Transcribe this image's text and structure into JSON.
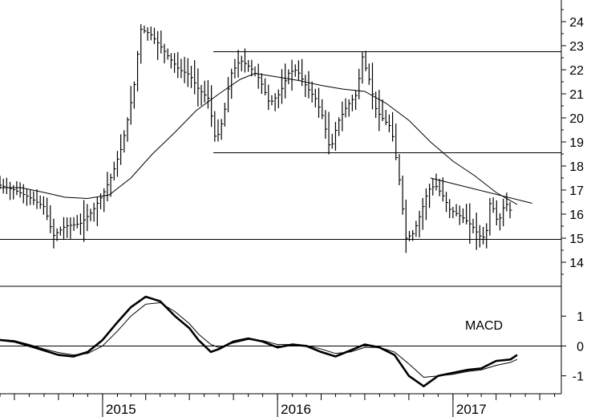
{
  "chart_data": [
    {
      "type": "ohlc",
      "panel": "price",
      "title": "",
      "ylim": [
        13.0,
        24.9
      ],
      "yticks": [
        "24",
        "23",
        "22",
        "21",
        "20",
        "19",
        "18",
        "17",
        "16",
        "15",
        "14"
      ],
      "grid": false,
      "moving_average_points": [
        [
          "2014-06-01",
          17.1
        ],
        [
          "2014-07-15",
          17.1
        ],
        [
          "2014-09-01",
          16.9
        ],
        [
          "2014-10-15",
          16.7
        ],
        [
          "2014-12-01",
          16.65
        ],
        [
          "2015-01-15",
          16.8
        ],
        [
          "2015-03-01",
          17.5
        ],
        [
          "2015-04-15",
          18.5
        ],
        [
          "2015-06-01",
          19.4
        ],
        [
          "2015-07-15",
          20.3
        ],
        [
          "2015-09-01",
          21.0
        ],
        [
          "2015-10-15",
          21.6
        ],
        [
          "2015-11-15",
          21.85
        ],
        [
          "2016-01-01",
          21.7
        ],
        [
          "2016-02-15",
          21.55
        ],
        [
          "2016-04-01",
          21.35
        ],
        [
          "2016-05-15",
          21.2
        ],
        [
          "2016-07-01",
          21.1
        ],
        [
          "2016-08-15",
          20.6
        ],
        [
          "2016-10-01",
          19.9
        ],
        [
          "2016-11-15",
          19.0
        ],
        [
          "2017-01-01",
          18.2
        ],
        [
          "2017-02-15",
          17.6
        ],
        [
          "2017-04-01",
          16.9
        ],
        [
          "2017-05-15",
          16.4
        ]
      ],
      "trendlines": [
        {
          "from": [
            "2015-08-20",
            22.75
          ],
          "to": [
            "2017-08-15",
            22.75
          ]
        },
        {
          "from": [
            "2015-08-20",
            18.55
          ],
          "to": [
            "2017-08-15",
            18.55
          ]
        },
        {
          "from": [
            "2014-06-01",
            14.95
          ],
          "to": [
            "2017-08-15",
            14.95
          ]
        },
        {
          "from": [
            "2016-11-15",
            17.5
          ],
          "to": [
            "2017-06-15",
            16.45
          ]
        }
      ],
      "price_points": [
        [
          "2014-06-01",
          17.2
        ],
        [
          "2014-07-01",
          17.0
        ],
        [
          "2014-08-01",
          16.7
        ],
        [
          "2014-09-01",
          16.3
        ],
        [
          "2014-09-20",
          15.1
        ],
        [
          "2014-10-15",
          15.5
        ],
        [
          "2014-11-15",
          15.6
        ],
        [
          "2014-12-10",
          16.1
        ],
        [
          "2015-01-01",
          16.8
        ],
        [
          "2015-01-20",
          17.6
        ],
        [
          "2015-02-10",
          18.8
        ],
        [
          "2015-02-25",
          20.2
        ],
        [
          "2015-03-10",
          21.6
        ],
        [
          "2015-03-20",
          23.7
        ],
        [
          "2015-04-10",
          23.5
        ],
        [
          "2015-05-01",
          23.0
        ],
        [
          "2015-05-20",
          22.5
        ],
        [
          "2015-06-10",
          22.0
        ],
        [
          "2015-07-01",
          21.8
        ],
        [
          "2015-07-20",
          21.2
        ],
        [
          "2015-08-10",
          20.8
        ],
        [
          "2015-08-25",
          19.0
        ],
        [
          "2015-09-10",
          20.0
        ],
        [
          "2015-09-25",
          21.8
        ],
        [
          "2015-10-15",
          22.4
        ],
        [
          "2015-11-05",
          22.1
        ],
        [
          "2015-11-25",
          21.6
        ],
        [
          "2015-12-15",
          20.6
        ],
        [
          "2016-01-05",
          21.0
        ],
        [
          "2016-01-25",
          21.9
        ],
        [
          "2016-02-10",
          22.0
        ],
        [
          "2016-03-01",
          21.3
        ],
        [
          "2016-03-20",
          20.8
        ],
        [
          "2016-04-05",
          20.0
        ],
        [
          "2016-04-20",
          18.6
        ],
        [
          "2016-05-05",
          19.8
        ],
        [
          "2016-05-25",
          20.5
        ],
        [
          "2016-06-15",
          21.0
        ],
        [
          "2016-06-25",
          22.6
        ],
        [
          "2016-07-10",
          21.6
        ],
        [
          "2016-07-25",
          20.3
        ],
        [
          "2016-08-10",
          19.9
        ],
        [
          "2016-08-25",
          19.6
        ],
        [
          "2016-09-10",
          17.6
        ],
        [
          "2016-09-25",
          15.0
        ],
        [
          "2016-10-10",
          15.2
        ],
        [
          "2016-10-25",
          16.0
        ],
        [
          "2016-11-10",
          17.0
        ],
        [
          "2016-11-25",
          17.2
        ],
        [
          "2016-12-10",
          16.8
        ],
        [
          "2016-12-25",
          16.2
        ],
        [
          "2017-01-10",
          16.0
        ],
        [
          "2017-01-25",
          15.8
        ],
        [
          "2017-02-10",
          15.5
        ],
        [
          "2017-02-25",
          15.1
        ],
        [
          "2017-03-10",
          15.0
        ],
        [
          "2017-03-20",
          16.6
        ],
        [
          "2017-04-05",
          15.6
        ],
        [
          "2017-04-20",
          16.5
        ],
        [
          "2017-05-05",
          16.0
        ]
      ]
    },
    {
      "type": "line",
      "panel": "indicator",
      "title": "MACD",
      "ylim": [
        -1.6,
        2.0
      ],
      "yticks": [
        "1",
        "0",
        "-1"
      ],
      "grid": false,
      "series": [
        {
          "name": "",
          "style": "thick",
          "points": [
            [
              "2014-06-01",
              0.2
            ],
            [
              "2014-07-01",
              0.15
            ],
            [
              "2014-08-01",
              0.0
            ],
            [
              "2014-09-01",
              -0.15
            ],
            [
              "2014-10-01",
              -0.3
            ],
            [
              "2014-11-01",
              -0.35
            ],
            [
              "2014-12-01",
              -0.2
            ],
            [
              "2015-01-01",
              0.2
            ],
            [
              "2015-02-01",
              0.8
            ],
            [
              "2015-03-01",
              1.3
            ],
            [
              "2015-04-01",
              1.65
            ],
            [
              "2015-05-01",
              1.5
            ],
            [
              "2015-06-01",
              1.0
            ],
            [
              "2015-07-01",
              0.6
            ],
            [
              "2015-07-20",
              0.2
            ],
            [
              "2015-08-15",
              -0.2
            ],
            [
              "2015-09-01",
              -0.1
            ],
            [
              "2015-10-01",
              0.15
            ],
            [
              "2015-11-01",
              0.25
            ],
            [
              "2015-12-01",
              0.15
            ],
            [
              "2016-01-01",
              -0.05
            ],
            [
              "2016-02-01",
              0.05
            ],
            [
              "2016-03-01",
              0.0
            ],
            [
              "2016-04-01",
              -0.2
            ],
            [
              "2016-05-01",
              -0.35
            ],
            [
              "2016-06-01",
              -0.15
            ],
            [
              "2016-07-01",
              0.05
            ],
            [
              "2016-08-01",
              -0.05
            ],
            [
              "2016-09-01",
              -0.3
            ],
            [
              "2016-10-01",
              -1.0
            ],
            [
              "2016-11-01",
              -1.35
            ],
            [
              "2016-12-01",
              -1.0
            ],
            [
              "2017-01-01",
              -0.9
            ],
            [
              "2017-02-01",
              -0.8
            ],
            [
              "2017-03-01",
              -0.75
            ],
            [
              "2017-04-01",
              -0.5
            ],
            [
              "2017-05-01",
              -0.45
            ],
            [
              "2017-05-15",
              -0.3
            ]
          ]
        },
        {
          "name": "",
          "style": "thin",
          "points": [
            [
              "2014-06-01",
              0.22
            ],
            [
              "2014-07-01",
              0.18
            ],
            [
              "2014-08-01",
              0.05
            ],
            [
              "2014-09-01",
              -0.1
            ],
            [
              "2014-10-01",
              -0.22
            ],
            [
              "2014-11-01",
              -0.3
            ],
            [
              "2014-12-01",
              -0.25
            ],
            [
              "2015-01-01",
              0.0
            ],
            [
              "2015-02-01",
              0.5
            ],
            [
              "2015-03-01",
              1.0
            ],
            [
              "2015-04-01",
              1.4
            ],
            [
              "2015-05-01",
              1.45
            ],
            [
              "2015-06-01",
              1.15
            ],
            [
              "2015-07-01",
              0.75
            ],
            [
              "2015-07-20",
              0.4
            ],
            [
              "2015-08-15",
              0.05
            ],
            [
              "2015-09-01",
              -0.05
            ],
            [
              "2015-10-01",
              0.1
            ],
            [
              "2015-11-01",
              0.22
            ],
            [
              "2015-12-01",
              0.18
            ],
            [
              "2016-01-01",
              0.05
            ],
            [
              "2016-02-01",
              0.05
            ],
            [
              "2016-03-01",
              0.02
            ],
            [
              "2016-04-01",
              -0.1
            ],
            [
              "2016-05-01",
              -0.25
            ],
            [
              "2016-06-01",
              -0.2
            ],
            [
              "2016-07-01",
              -0.05
            ],
            [
              "2016-08-01",
              -0.05
            ],
            [
              "2016-09-01",
              -0.2
            ],
            [
              "2016-10-01",
              -0.6
            ],
            [
              "2016-11-01",
              -1.05
            ],
            [
              "2016-12-01",
              -1.0
            ],
            [
              "2017-01-01",
              -0.95
            ],
            [
              "2017-02-01",
              -0.85
            ],
            [
              "2017-03-01",
              -0.8
            ],
            [
              "2017-04-01",
              -0.65
            ],
            [
              "2017-05-01",
              -0.55
            ],
            [
              "2017-05-15",
              -0.45
            ]
          ]
        }
      ]
    }
  ],
  "x_axis": {
    "range": [
      "2014-06-01",
      "2017-08-15"
    ],
    "year_labels": [
      {
        "date": "2015-01-01",
        "label": "2015"
      },
      {
        "date": "2016-01-01",
        "label": "2016"
      },
      {
        "date": "2017-01-01",
        "label": "2017"
      }
    ]
  }
}
